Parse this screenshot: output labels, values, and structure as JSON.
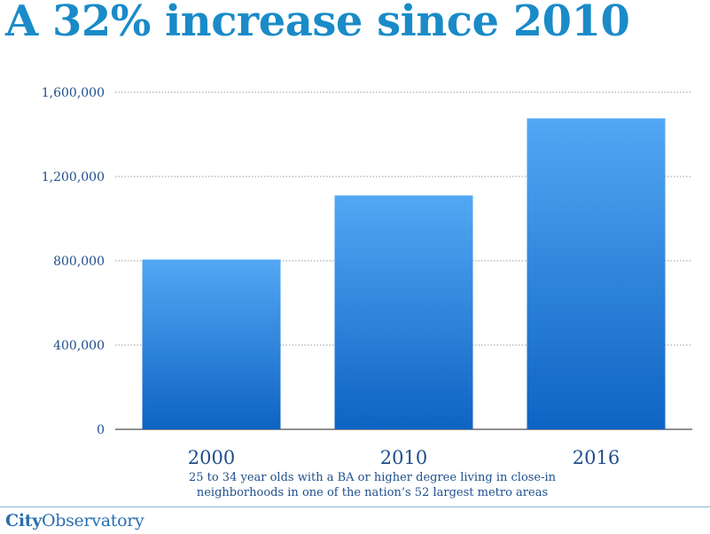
{
  "title": "A 32% increase since 2010",
  "subtitle_line1": "25 to 34 year olds with a BA or higher degree living in close-in",
  "subtitle_line2": "neighborhoods in one of the nation’s 52 largest metro areas",
  "logo": {
    "bold": "City",
    "regular": "Observatory"
  },
  "colors": {
    "title": "#1a8bc8",
    "bar_top": "#52a8f4",
    "bar_bottom": "#0f63c3",
    "axis_text": "#1f4e8c",
    "grid": "#9a9a9a"
  },
  "chart_data": {
    "type": "bar",
    "categories": [
      "2000",
      "2010",
      "2016"
    ],
    "values": [
      806000,
      1110000,
      1476000
    ],
    "ylim": [
      0,
      1600000
    ],
    "yticks": [
      0,
      400000,
      800000,
      1200000,
      1600000
    ],
    "ytick_labels": [
      "0",
      "400,000",
      "800,000",
      "1,200,000",
      "1,600,000"
    ],
    "grid": true,
    "title": "A 32% increase since 2010",
    "xlabel": "",
    "ylabel": ""
  }
}
